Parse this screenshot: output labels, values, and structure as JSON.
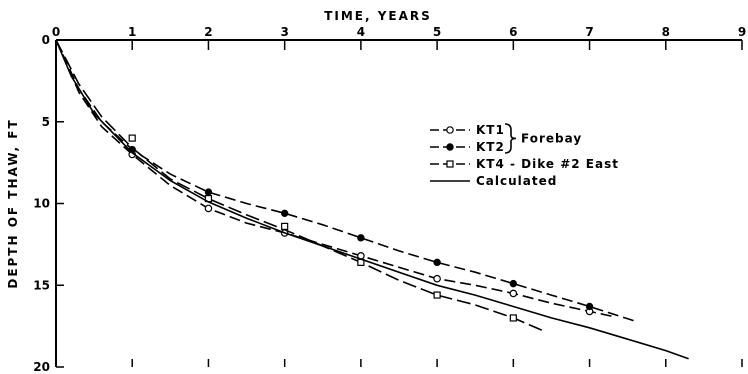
{
  "chart_data": {
    "type": "line",
    "xlabel": "TIME, YEARS",
    "ylabel": "DEPTH OF THAW, FT",
    "xlim": [
      0,
      9
    ],
    "ylim": [
      0,
      20
    ],
    "y_inverted": true,
    "x_axis_position": "top",
    "xticks": [
      "0",
      "1",
      "2",
      "3",
      "4",
      "5",
      "6",
      "7",
      "8",
      "9"
    ],
    "yticks": [
      "0",
      "5",
      "10",
      "15",
      "20"
    ],
    "grid": false,
    "legend": {
      "placement": "center-right",
      "group_label": "Forebay",
      "entries": [
        {
          "label": "KT1",
          "marker": "open-circle",
          "line": "dashed"
        },
        {
          "label": "KT2",
          "marker": "filled-circle",
          "line": "dashed"
        },
        {
          "label": "KT4 - Dike #2 East",
          "marker": "open-square",
          "line": "dashed"
        },
        {
          "label": "Calculated",
          "marker": "none",
          "line": "solid"
        }
      ]
    },
    "series": [
      {
        "name": "KT1",
        "marker": "open-circle",
        "line": "dashed",
        "points": [
          [
            1,
            7.0
          ],
          [
            2,
            10.3
          ],
          [
            3,
            11.8
          ],
          [
            4,
            13.2
          ],
          [
            5,
            14.6
          ],
          [
            6,
            15.5
          ],
          [
            7,
            16.6
          ]
        ],
        "curve": [
          [
            0,
            0
          ],
          [
            0.3,
            3.2
          ],
          [
            0.6,
            5.3
          ],
          [
            1,
            7.0
          ],
          [
            1.5,
            8.9
          ],
          [
            2,
            10.3
          ],
          [
            2.5,
            11.2
          ],
          [
            3,
            11.8
          ],
          [
            3.5,
            12.5
          ],
          [
            4,
            13.2
          ],
          [
            4.5,
            13.9
          ],
          [
            5,
            14.6
          ],
          [
            5.5,
            15.0
          ],
          [
            6,
            15.5
          ],
          [
            6.5,
            16.1
          ],
          [
            7,
            16.6
          ],
          [
            7.3,
            16.9
          ]
        ]
      },
      {
        "name": "KT2",
        "marker": "filled-circle",
        "line": "dashed",
        "points": [
          [
            1,
            6.7
          ],
          [
            2,
            9.3
          ],
          [
            3,
            10.6
          ],
          [
            4,
            12.1
          ],
          [
            5,
            13.6
          ],
          [
            6,
            14.9
          ],
          [
            7,
            16.3
          ]
        ],
        "curve": [
          [
            0,
            0
          ],
          [
            0.3,
            3.0
          ],
          [
            0.6,
            5.0
          ],
          [
            1,
            6.7
          ],
          [
            1.5,
            8.2
          ],
          [
            2,
            9.3
          ],
          [
            2.5,
            10.0
          ],
          [
            3,
            10.6
          ],
          [
            3.5,
            11.3
          ],
          [
            4,
            12.1
          ],
          [
            4.5,
            12.9
          ],
          [
            5,
            13.6
          ],
          [
            5.5,
            14.2
          ],
          [
            6,
            14.9
          ],
          [
            6.5,
            15.6
          ],
          [
            7,
            16.3
          ],
          [
            7.6,
            17.2
          ]
        ]
      },
      {
        "name": "KT4 - Dike #2 East",
        "marker": "open-square",
        "line": "dashed",
        "points": [
          [
            1,
            6.0
          ],
          [
            2,
            9.7
          ],
          [
            3,
            11.4
          ],
          [
            4,
            13.6
          ],
          [
            5,
            15.6
          ],
          [
            6,
            17.0
          ]
        ],
        "curve": [
          [
            0,
            0
          ],
          [
            0.3,
            2.7
          ],
          [
            0.6,
            4.7
          ],
          [
            1,
            6.6
          ],
          [
            1.5,
            8.5
          ],
          [
            2,
            9.7
          ],
          [
            2.5,
            10.7
          ],
          [
            3,
            11.6
          ],
          [
            3.5,
            12.6
          ],
          [
            4,
            13.6
          ],
          [
            4.5,
            14.7
          ],
          [
            5,
            15.6
          ],
          [
            5.5,
            16.2
          ],
          [
            6,
            17.0
          ],
          [
            6.4,
            17.8
          ]
        ]
      },
      {
        "name": "Calculated",
        "marker": "none",
        "line": "solid",
        "points": [],
        "curve": [
          [
            0,
            0
          ],
          [
            0.2,
            2.2
          ],
          [
            0.5,
            4.5
          ],
          [
            1,
            6.9
          ],
          [
            1.5,
            8.6
          ],
          [
            2,
            9.9
          ],
          [
            2.5,
            10.9
          ],
          [
            3,
            11.8
          ],
          [
            3.5,
            12.6
          ],
          [
            4,
            13.4
          ],
          [
            4.5,
            14.2
          ],
          [
            5,
            15.0
          ],
          [
            5.5,
            15.6
          ],
          [
            6,
            16.3
          ],
          [
            6.5,
            17.0
          ],
          [
            7,
            17.6
          ],
          [
            7.5,
            18.3
          ],
          [
            8,
            19.0
          ],
          [
            8.3,
            19.5
          ]
        ]
      }
    ]
  }
}
